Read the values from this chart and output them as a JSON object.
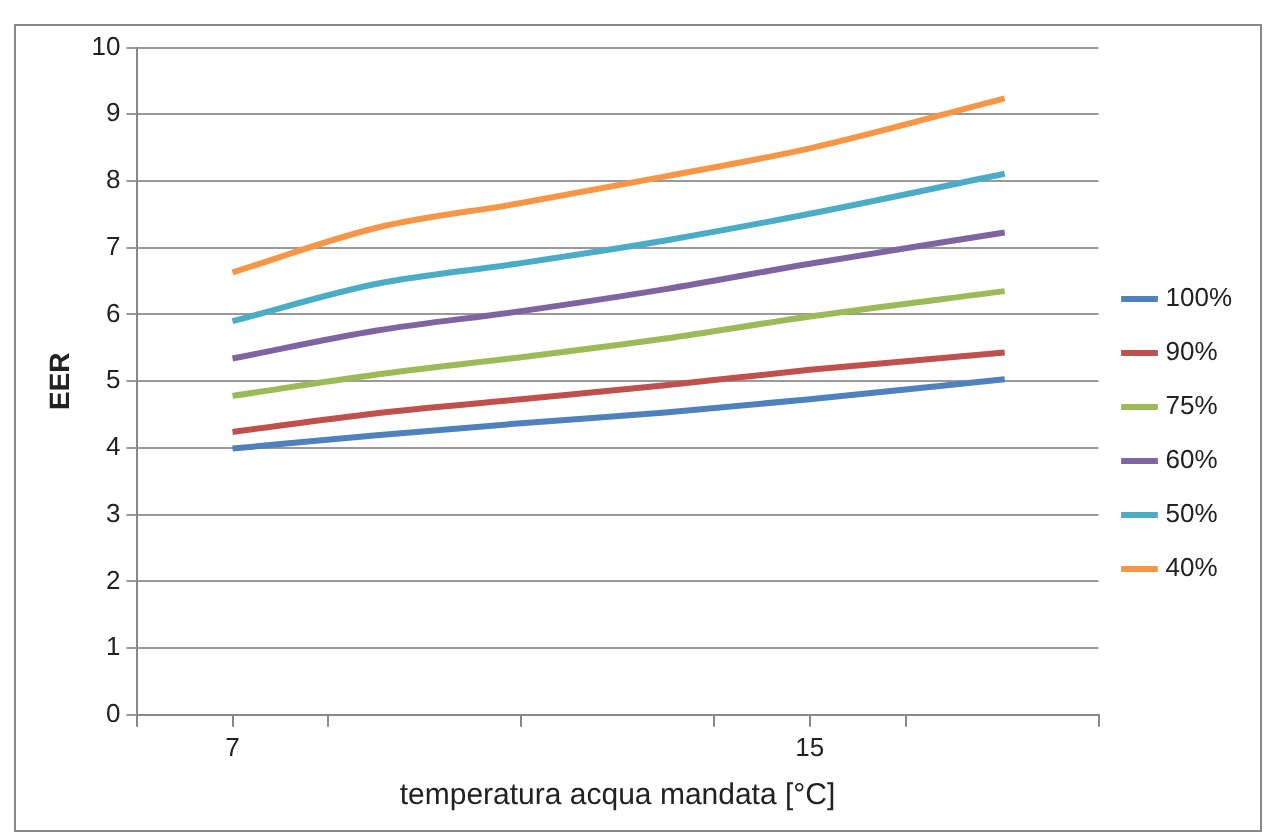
{
  "chart_data": {
    "type": "line",
    "xlabel": "temperatura acqua mandata [°C]",
    "ylabel": "EER",
    "x": [
      7,
      9,
      11,
      13,
      15,
      17.7
    ],
    "xlim": [
      5.67,
      19
    ],
    "xticks": [
      {
        "value": 5.67,
        "label": null
      },
      7,
      {
        "value": 8.33,
        "label": null
      },
      {
        "value": 11,
        "label": null
      },
      {
        "value": 13.67,
        "label": null
      },
      15,
      {
        "value": 16.33,
        "label": null
      },
      {
        "value": 19,
        "label": null
      }
    ],
    "ylim": [
      0,
      10
    ],
    "yticks": [
      0,
      1,
      2,
      3,
      4,
      5,
      6,
      7,
      8,
      9,
      10
    ],
    "grid": "y",
    "legend": "right",
    "marker": "none",
    "line_style": "solid",
    "series": [
      {
        "name": "100%",
        "color": "#4f81bd",
        "values": [
          3.99,
          4.19,
          4.37,
          4.53,
          4.73,
          5.03
        ]
      },
      {
        "name": "90%",
        "color": "#c0504d",
        "values": [
          4.24,
          4.52,
          4.73,
          4.94,
          5.17,
          5.43
        ]
      },
      {
        "name": "75%",
        "color": "#9bbb59",
        "values": [
          4.78,
          5.1,
          5.36,
          5.64,
          5.97,
          6.35
        ]
      },
      {
        "name": "60%",
        "color": "#8064a2",
        "values": [
          5.34,
          5.76,
          6.05,
          6.38,
          6.76,
          7.23
        ]
      },
      {
        "name": "50%",
        "color": "#4bacc6",
        "values": [
          5.9,
          6.46,
          6.77,
          7.11,
          7.51,
          8.11
        ]
      },
      {
        "name": "40%",
        "color": "#f79646",
        "values": [
          6.63,
          7.3,
          7.67,
          8.07,
          8.49,
          9.24
        ]
      }
    ]
  }
}
